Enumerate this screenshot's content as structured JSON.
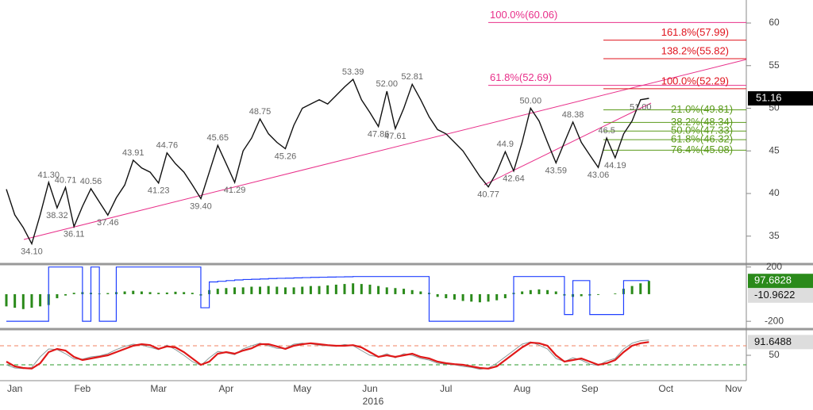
{
  "chart_data": [
    {
      "type": "line",
      "categories": [
        null,
        "Jan",
        null,
        null,
        null,
        null,
        null,
        null,
        null,
        "Feb",
        null,
        null,
        null,
        null,
        null,
        null,
        null,
        null,
        "Mar",
        null,
        null,
        null,
        null,
        null,
        null,
        null,
        "Apr",
        null,
        null,
        null,
        null,
        null,
        null,
        null,
        null,
        "May",
        null,
        null,
        null,
        null,
        null,
        null,
        null,
        "Jun",
        null,
        null,
        null,
        null,
        null,
        null,
        null,
        null,
        "Jul",
        null,
        null,
        null,
        null,
        null,
        null,
        null,
        null,
        "Aug",
        null,
        null,
        null,
        null,
        null,
        null,
        null,
        "Sep",
        null,
        null,
        null,
        null,
        null,
        null,
        null,
        null,
        "Oct",
        null,
        null,
        null,
        null,
        null,
        null,
        null,
        "Nov",
        null
      ],
      "series": [
        {
          "color": "#111111",
          "values": [
            40.5,
            37.5,
            36,
            34.1,
            37.5,
            41.3,
            38.32,
            40.71,
            36.11,
            38.5,
            40.56,
            39,
            37.46,
            39.5,
            41,
            43.91,
            43,
            42.5,
            41.23,
            44.76,
            43.5,
            42.5,
            41,
            39.4,
            42.5,
            45.65,
            43.5,
            41.29,
            45,
            46.5,
            48.75,
            47,
            46,
            45.26,
            48,
            50,
            50.5,
            51,
            50.5,
            51.5,
            52.5,
            53.39,
            51,
            49.5,
            47.86,
            52,
            47.61,
            50,
            52.81,
            51,
            49,
            47.5,
            47,
            46,
            45,
            43.5,
            42,
            40.77,
            42.5,
            44.9,
            42.64,
            46,
            50,
            48.5,
            46,
            43.59,
            46,
            48.38,
            46,
            44.5,
            43.06,
            46.5,
            44.19,
            47,
            48.5,
            51,
            51.16,
            null,
            null,
            null,
            null,
            null,
            null,
            null,
            null,
            null,
            null,
            null
          ],
          "value_labels": [
            null,
            null,
            null,
            "34.10",
            null,
            "41.30",
            "38.32",
            "40.71",
            "36.11",
            null,
            "40.56",
            null,
            "37.46",
            null,
            null,
            "43.91",
            null,
            null,
            "41.23",
            "44.76",
            null,
            null,
            null,
            "39.40",
            null,
            "45.65",
            null,
            "41.29",
            null,
            null,
            "48.75",
            null,
            null,
            "45.26",
            null,
            null,
            null,
            null,
            null,
            null,
            null,
            "53.39",
            null,
            null,
            "47.86",
            "52.00",
            "47.61",
            null,
            "52.81",
            null,
            null,
            null,
            null,
            null,
            null,
            null,
            null,
            "40.77",
            null,
            "44.9",
            "42.64",
            null,
            "50.00",
            null,
            null,
            "43.59",
            null,
            "48.38",
            null,
            null,
            "43.06",
            "46.5",
            "44.19",
            null,
            null,
            "51.00",
            null,
            null,
            null,
            null,
            null,
            null,
            null,
            null,
            null,
            null,
            null,
            null
          ]
        }
      ],
      "ylim": [
        32,
        62.7
      ],
      "yticks": [
        35,
        40,
        45,
        50,
        55,
        60
      ],
      "levels_pink": [
        {
          "label": "100.0%(60.06)",
          "value": 60.06,
          "color": "#e8308a"
        },
        {
          "label": "61.8%(52.69)",
          "value": 52.69,
          "color": "#e8308a"
        }
      ],
      "levels_red": [
        {
          "label": "161.8%(57.99)",
          "value": 57.99,
          "color": "#e0141e"
        },
        {
          "label": "138.2%(55.82)",
          "value": 55.82,
          "color": "#e0141e"
        },
        {
          "label": "100.0%(52.29)",
          "value": 52.29,
          "color": "#e0141e"
        }
      ],
      "levels_green": [
        {
          "label": "21.0%(49.81)",
          "value": 49.81,
          "color": "#5a9a1a"
        },
        {
          "label": "38.2%(48.34)",
          "value": 48.34,
          "color": "#5a9a1a"
        },
        {
          "label": "50.0%(47.33)",
          "value": 47.33,
          "color": "#5a9a1a"
        },
        {
          "label": "61.8%(46.32)",
          "value": 46.32,
          "color": "#5a9a1a"
        },
        {
          "label": "76.4%(45.08)",
          "value": 45.08,
          "color": "#5a9a1a"
        }
      ],
      "year_label": "2016"
    },
    {
      "type": "bar",
      "series": [
        {
          "color": "#2a8a1a",
          "values": [
            -90,
            -100,
            -110,
            -100,
            -90,
            -80,
            -30,
            -10,
            10,
            15,
            10,
            5,
            8,
            15,
            20,
            25,
            20,
            15,
            10,
            12,
            18,
            15,
            10,
            -10,
            30,
            40,
            45,
            50,
            50,
            55,
            55,
            60,
            55,
            50,
            50,
            55,
            60,
            60,
            65,
            70,
            75,
            80,
            75,
            70,
            60,
            50,
            45,
            40,
            30,
            20,
            10,
            -20,
            -30,
            -40,
            -50,
            -55,
            -60,
            -55,
            -45,
            -30,
            10,
            20,
            30,
            35,
            30,
            20,
            -10,
            -20,
            -15,
            -10,
            -5,
            0,
            5,
            40,
            60,
            80,
            97.6828,
            null,
            null,
            null,
            null,
            null,
            null,
            null,
            null,
            null,
            null,
            null
          ]
        },
        {
          "type": "line",
          "color": "#2040ff",
          "values": [
            -200,
            -200,
            -200,
            -200,
            -200,
            200,
            200,
            200,
            200,
            -200,
            200,
            -200,
            -200,
            200,
            200,
            200,
            200,
            200,
            200,
            200,
            200,
            200,
            200,
            -100,
            90,
            95,
            100,
            105,
            108,
            110,
            112,
            115,
            117,
            118,
            120,
            122,
            124,
            125,
            126,
            127,
            128,
            130,
            130,
            130,
            130,
            130,
            130,
            130,
            130,
            130,
            -200,
            -200,
            -200,
            -200,
            -200,
            -200,
            -200,
            -200,
            -200,
            -200,
            130,
            130,
            130,
            130,
            130,
            130,
            -150,
            100,
            100,
            -150,
            -150,
            -150,
            -150,
            100,
            100,
            100,
            100,
            null,
            null,
            null,
            null,
            null,
            null,
            null,
            null,
            null,
            null,
            null
          ]
        }
      ],
      "ylim": [
        -240,
        210
      ],
      "yticks": [
        -200,
        200
      ],
      "readout": -10.9622
    },
    {
      "type": "line",
      "series": [
        {
          "color": "#e01818",
          "values": [
            30,
            15,
            10,
            8,
            25,
            60,
            70,
            65,
            45,
            35,
            40,
            45,
            50,
            60,
            70,
            80,
            85,
            82,
            70,
            78,
            75,
            60,
            40,
            20,
            30,
            55,
            60,
            55,
            65,
            72,
            85,
            85,
            78,
            70,
            80,
            85,
            88,
            85,
            82,
            80,
            80,
            82,
            75,
            60,
            45,
            50,
            45,
            50,
            55,
            45,
            40,
            30,
            25,
            22,
            20,
            15,
            10,
            8,
            15,
            35,
            55,
            75,
            90,
            88,
            80,
            50,
            30,
            35,
            40,
            30,
            20,
            25,
            35,
            60,
            80,
            88,
            91.6488,
            null,
            null,
            null,
            null,
            null,
            null,
            null,
            null,
            null,
            null,
            null
          ]
        },
        {
          "color": "#8a9a9a",
          "values": [
            20,
            10,
            8,
            12,
            45,
            70,
            68,
            55,
            38,
            38,
            45,
            48,
            55,
            68,
            78,
            85,
            82,
            75,
            68,
            82,
            68,
            50,
            30,
            18,
            42,
            62,
            58,
            52,
            70,
            80,
            88,
            80,
            72,
            72,
            85,
            88,
            86,
            82,
            80,
            78,
            84,
            80,
            65,
            50,
            45,
            55,
            42,
            55,
            50,
            40,
            35,
            25,
            22,
            20,
            15,
            12,
            6,
            10,
            25,
            45,
            65,
            85,
            92,
            82,
            70,
            40,
            30,
            42,
            35,
            22,
            18,
            32,
            40,
            70,
            88,
            96,
            98,
            null,
            null,
            null,
            null,
            null,
            null,
            null,
            null,
            null,
            null,
            null
          ]
        }
      ],
      "ylim": [
        -25,
        125
      ],
      "yticks": [
        50
      ],
      "reference_lines": [
        {
          "value": 80,
          "color": "#f08060"
        },
        {
          "value": 20,
          "color": "#2a9a2a"
        }
      ]
    }
  ]
}
